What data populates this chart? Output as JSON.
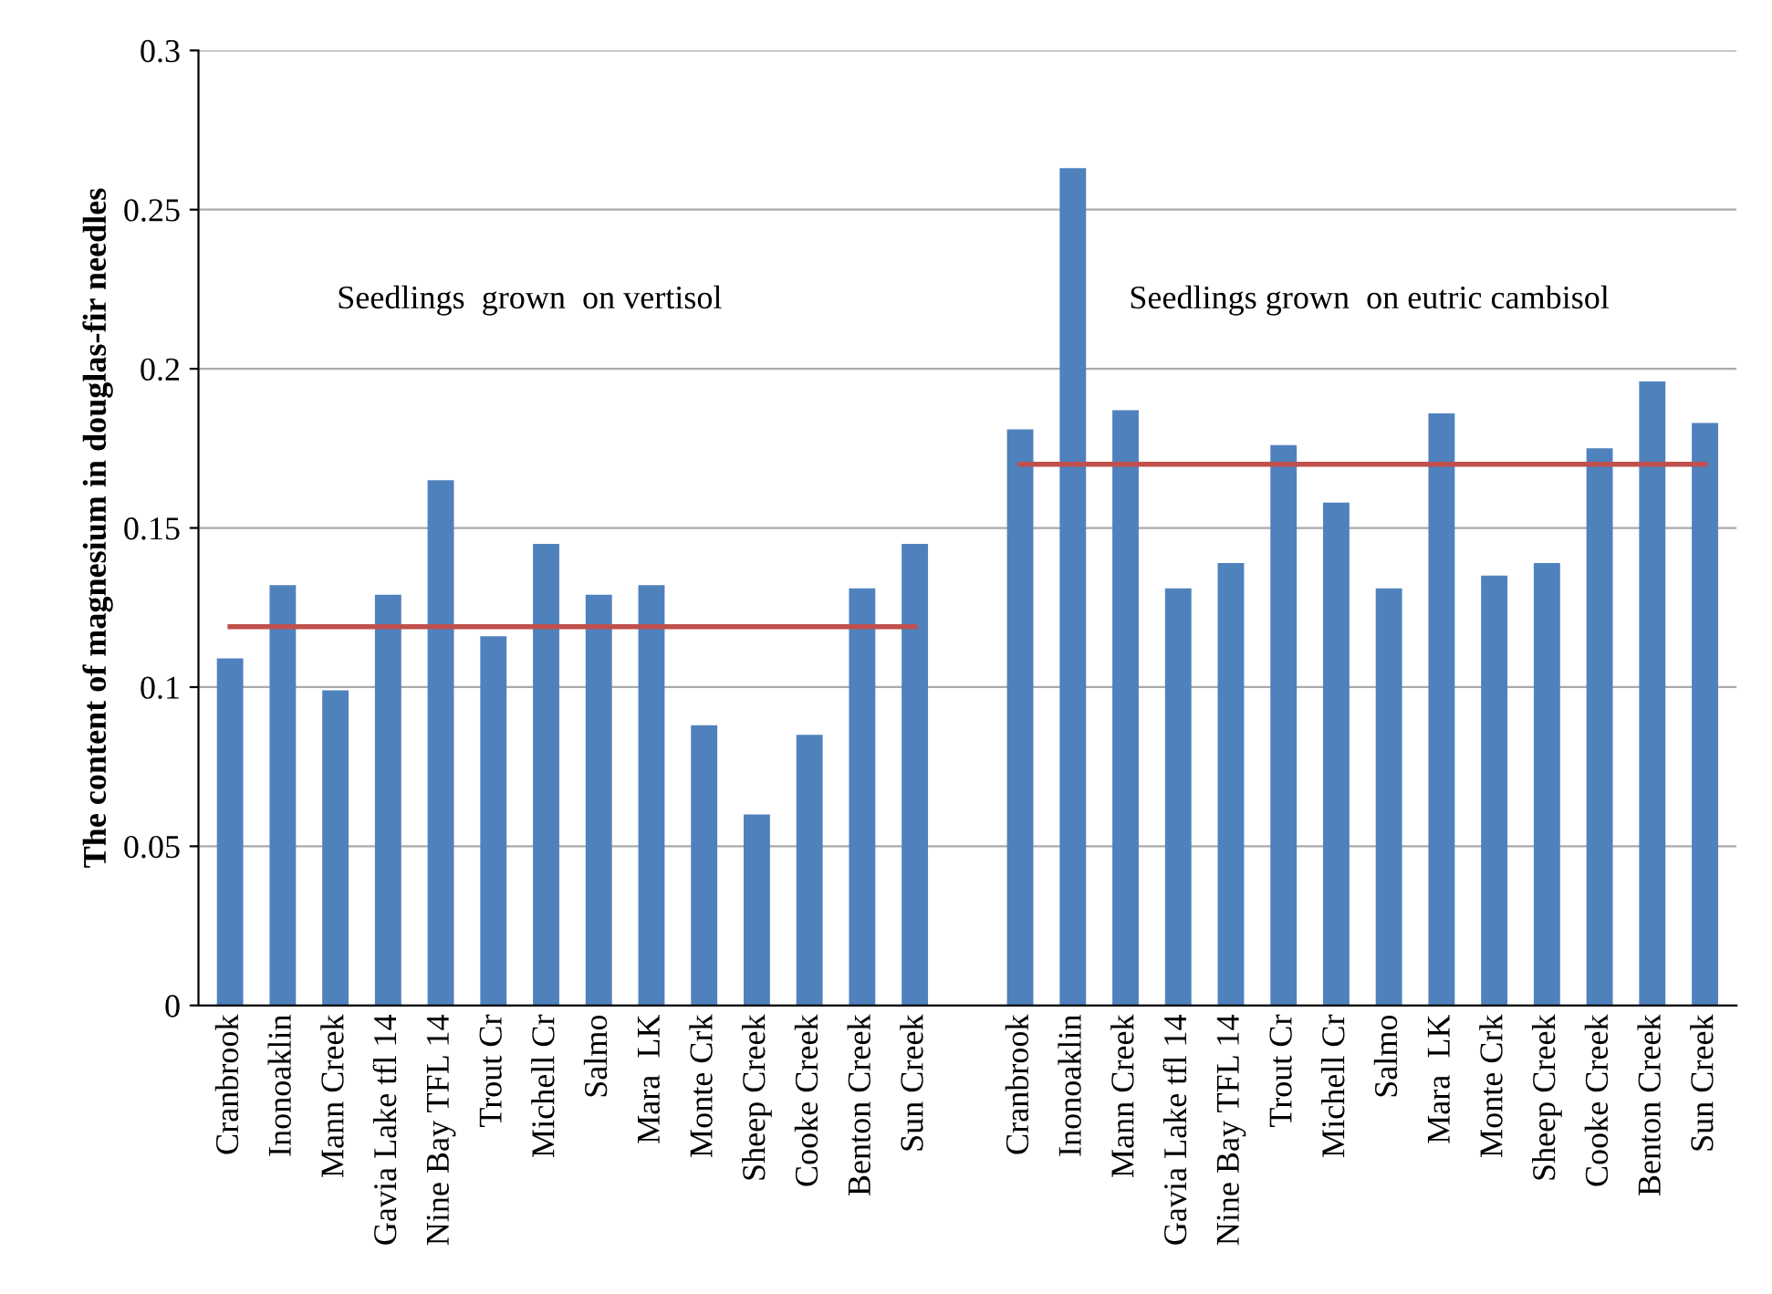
{
  "chart_data": {
    "type": "bar",
    "ylabel": "The content of magnesium in douglas-fir needles",
    "categories": [
      "Cranbrook",
      "Inonoaklin",
      "Mann Creek",
      "Gavia Lake tfl 14",
      "Nine Bay TFL 14",
      "Trout Cr",
      "Michell Cr",
      "Salmo",
      "Mara  LK",
      "Monte Crk",
      "Sheep Creek",
      "Cooke Creek",
      "Benton Creek",
      "Sun Creek",
      null,
      "Cranbrook",
      "Inonoaklin",
      "Mann Creek",
      "Gavia Lake tfl 14",
      "Nine Bay TFL 14",
      "Trout Cr",
      "Michell Cr",
      "Salmo",
      "Mara  LK",
      "Monte Crk",
      "Sheep Creek",
      "Cooke Creek",
      "Benton Creek",
      "Sun Creek"
    ],
    "series": [
      {
        "color": "#4f81bd",
        "values": [
          0.109,
          0.132,
          0.099,
          0.129,
          0.165,
          0.116,
          0.145,
          0.129,
          0.132,
          0.088,
          0.06,
          0.085,
          0.131,
          0.145,
          null,
          0.181,
          0.263,
          0.187,
          0.131,
          0.139,
          0.176,
          0.158,
          0.131,
          0.186,
          0.135,
          0.139,
          0.175,
          0.196,
          0.183
        ]
      },
      {
        "type": "line",
        "color": "#c0504d",
        "values": [
          0.119,
          0.119,
          0.119,
          0.119,
          0.119,
          0.119,
          0.119,
          0.119,
          0.119,
          0.119,
          0.119,
          0.119,
          0.119,
          0.119,
          null,
          null,
          null,
          null,
          null,
          null,
          null,
          null,
          null,
          null,
          null,
          null,
          null,
          null,
          null
        ]
      },
      {
        "type": "line",
        "color": "#c0504d",
        "values": [
          null,
          null,
          null,
          null,
          null,
          null,
          null,
          null,
          null,
          null,
          null,
          null,
          null,
          null,
          null,
          0.17,
          0.17,
          0.17,
          0.17,
          0.17,
          0.17,
          0.17,
          0.17,
          0.17,
          0.17,
          0.17,
          0.17,
          0.17,
          0.17
        ]
      }
    ],
    "annotations": [
      "Seedlings  grown  on vertisol",
      "Seedlings grown  on eutric cambisol"
    ],
    "ylim": [
      0,
      0.3
    ],
    "yticks": [
      {
        "value": 0,
        "label": "0"
      },
      0.05,
      0.1,
      0.15,
      0.2,
      0.25,
      0.3
    ],
    "grid": "y",
    "legend": false
  }
}
